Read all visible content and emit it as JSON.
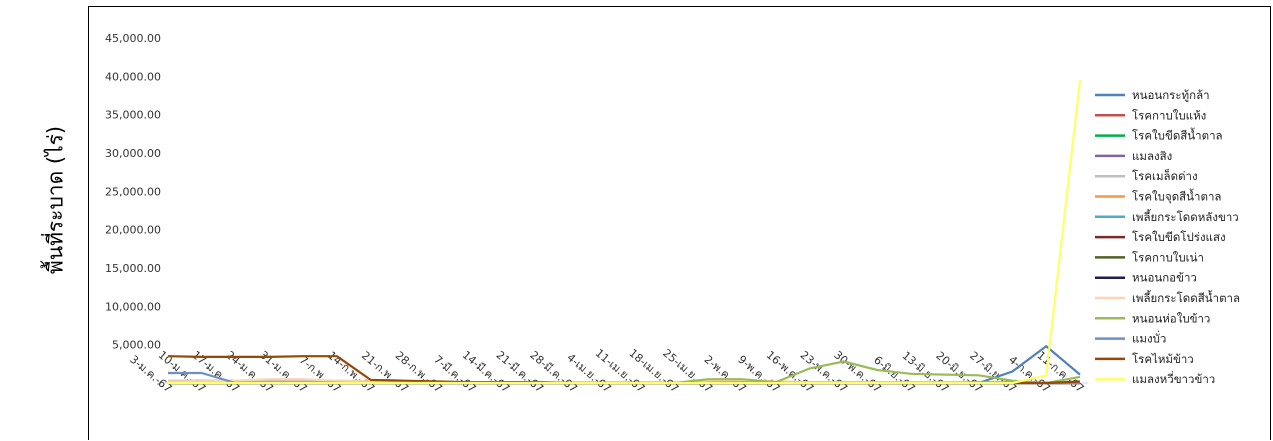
{
  "chart_data": {
    "type": "line",
    "title": "",
    "xlabel": "",
    "ylabel": "พื้นที่ระบาด (ไร่)",
    "ylim": [
      0,
      45000
    ],
    "yticks": [
      "-",
      "5,000.00",
      "10,000.00",
      "15,000.00",
      "20,000.00",
      "25,000.00",
      "30,000.00",
      "35,000.00",
      "40,000.00",
      "45,000.00"
    ],
    "grid": false,
    "legend_position": "right",
    "categories": [
      "3-ม.ค.-67",
      "10-ม.ค.-67",
      "17-ม.ค.-67",
      "24-ม.ค.-67",
      "31-ม.ค.-67",
      "7-ก.พ.-67",
      "14-ก.พ.-67",
      "21-ก.พ.-67",
      "28-ก.พ.-67",
      "7-มี.ค.-67",
      "14-มี.ค.-67",
      "21-มี.ค.-67",
      "28-มี.ค.-67",
      "4-เม.ย.-67",
      "11-เม.ย.-67",
      "18-เม.ย.-67",
      "25-เม.ย.-67",
      "2-พ.ค.-67",
      "9-พ.ค.-67",
      "16-พ.ค.-67",
      "23-พ.ค.-67",
      "30-พ.ค.-67",
      "6-มิ.ย.-67",
      "13-มิ.ย.-67",
      "20-มิ.ย.-67",
      "27-มิ.ย.-67",
      "4-ก.ค.-67",
      "11-ก.ค.-67"
    ],
    "series": [
      {
        "name": "หนอนกระทู้กล้า",
        "color": "#4f81bd",
        "values": [
          0,
          0,
          0,
          0,
          0,
          0,
          0,
          0,
          0,
          0,
          0,
          0,
          0,
          0,
          0,
          0,
          0,
          0,
          0,
          0,
          0,
          0,
          0,
          0,
          0,
          1500,
          4800,
          1100
        ]
      },
      {
        "name": "โรคกาบใบแห้ง",
        "color": "#c0504d",
        "values": [
          0,
          0,
          0,
          0,
          0,
          0,
          0,
          0,
          0,
          0,
          0,
          0,
          0,
          0,
          0,
          0,
          0,
          0,
          0,
          0,
          0,
          0,
          0,
          0,
          0,
          0,
          0,
          0
        ]
      },
      {
        "name": "โรคใบขีดสีน้ำตาล",
        "color": "#00b050",
        "values": [
          0,
          0,
          0,
          0,
          0,
          0,
          0,
          0,
          0,
          0,
          0,
          0,
          0,
          0,
          0,
          0,
          0,
          0,
          0,
          0,
          0,
          0,
          0,
          0,
          0,
          0,
          0,
          0
        ]
      },
      {
        "name": "แมลงสิง",
        "color": "#8064a2",
        "values": [
          0,
          0,
          0,
          0,
          0,
          0,
          0,
          0,
          0,
          0,
          0,
          0,
          0,
          0,
          0,
          0,
          0,
          0,
          0,
          0,
          0,
          0,
          0,
          0,
          0,
          0,
          0,
          0
        ]
      },
      {
        "name": "โรคเมล็ดด่าง",
        "color": "#bfbfbf",
        "values": [
          300,
          300,
          300,
          300,
          300,
          300,
          200,
          200,
          100,
          100,
          100,
          100,
          0,
          0,
          0,
          0,
          100,
          200,
          200,
          100,
          100,
          100,
          100,
          100,
          100,
          100,
          0,
          0
        ]
      },
      {
        "name": "โรคใบจุดสีน้ำตาล",
        "color": "#f79646",
        "values": [
          0,
          0,
          0,
          0,
          0,
          0,
          0,
          0,
          0,
          0,
          0,
          0,
          0,
          0,
          0,
          0,
          0,
          0,
          0,
          0,
          0,
          0,
          0,
          0,
          0,
          0,
          0,
          0
        ]
      },
      {
        "name": "เพลี้ยกระโดดหลังขาว",
        "color": "#4bacc6",
        "values": [
          0,
          0,
          0,
          0,
          0,
          0,
          0,
          0,
          0,
          0,
          0,
          0,
          0,
          0,
          0,
          0,
          0,
          0,
          0,
          0,
          0,
          0,
          0,
          0,
          0,
          0,
          0,
          0
        ]
      },
      {
        "name": "โรคใบขีดโปร่งแสง",
        "color": "#7b2a2a",
        "values": [
          0,
          0,
          0,
          0,
          0,
          0,
          0,
          0,
          0,
          0,
          0,
          0,
          0,
          0,
          0,
          0,
          0,
          0,
          0,
          0,
          0,
          0,
          0,
          0,
          0,
          0,
          0,
          0
        ]
      },
      {
        "name": "โรคกาบใบเน่า",
        "color": "#4f6228",
        "values": [
          0,
          0,
          0,
          0,
          0,
          0,
          0,
          0,
          0,
          0,
          0,
          0,
          0,
          0,
          0,
          0,
          0,
          0,
          0,
          0,
          0,
          0,
          0,
          0,
          0,
          0,
          0,
          0
        ]
      },
      {
        "name": "หนอนกอข้าว",
        "color": "#1f1f4f",
        "values": [
          0,
          0,
          0,
          0,
          0,
          0,
          0,
          0,
          0,
          0,
          0,
          0,
          0,
          0,
          0,
          0,
          0,
          0,
          0,
          0,
          0,
          0,
          0,
          0,
          0,
          0,
          0,
          0
        ]
      },
      {
        "name": "เพลี้ยกระโดดสีน้ำตาล",
        "color": "#fcd5b4",
        "values": [
          200,
          200,
          300,
          500,
          500,
          300,
          200,
          100,
          100,
          100,
          100,
          100,
          0,
          0,
          0,
          0,
          300,
          400,
          200,
          100,
          100,
          100,
          100,
          100,
          0,
          0,
          0,
          0
        ]
      },
      {
        "name": "หนอนห่อใบข้าว",
        "color": "#9bbb59",
        "values": [
          0,
          0,
          0,
          0,
          0,
          0,
          0,
          0,
          0,
          0,
          0,
          0,
          0,
          0,
          0,
          0,
          500,
          500,
          100,
          1900,
          2800,
          1700,
          1200,
          1100,
          1000,
          300,
          0,
          800
        ]
      },
      {
        "name": "แมงบั่ว",
        "color": "#6d8fc7",
        "values": [
          1300,
          1300,
          0,
          0,
          0,
          0,
          0,
          0,
          0,
          0,
          0,
          0,
          0,
          0,
          0,
          0,
          0,
          0,
          0,
          0,
          0,
          0,
          0,
          0,
          0,
          0,
          0,
          0
        ]
      },
      {
        "name": "โรคไหม้ข้าว",
        "color": "#974706",
        "values": [
          3500,
          3400,
          3400,
          3400,
          3500,
          3500,
          400,
          300,
          200,
          100,
          100,
          100,
          0,
          0,
          0,
          0,
          0,
          0,
          0,
          0,
          0,
          0,
          0,
          0,
          0,
          0,
          0,
          200
        ]
      },
      {
        "name": "แมลงหวี่ขาวข้าว",
        "color": "#ffff66",
        "values": [
          0,
          0,
          0,
          0,
          0,
          0,
          0,
          0,
          0,
          0,
          0,
          0,
          0,
          0,
          0,
          0,
          0,
          0,
          0,
          0,
          0,
          0,
          0,
          0,
          0,
          0,
          1000,
          39500
        ]
      }
    ]
  }
}
